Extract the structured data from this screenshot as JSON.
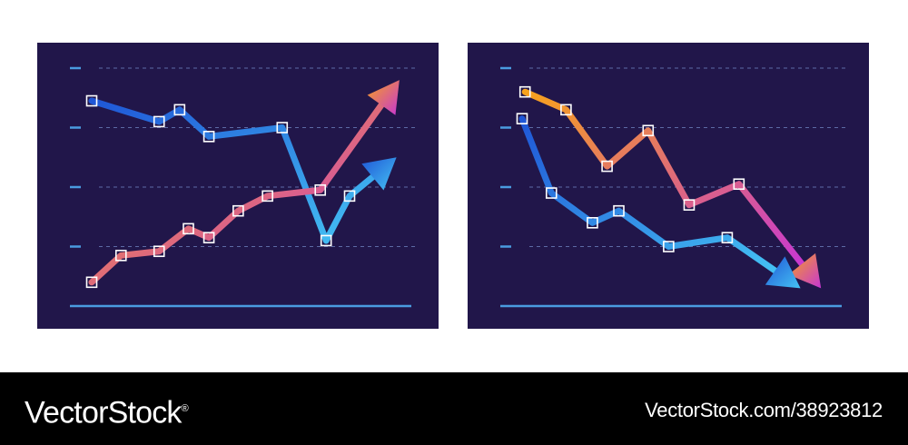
{
  "colors": {
    "background": "#21164a",
    "gridline": "#5d6aa5",
    "axis": "#4a9be0",
    "blue_series": [
      "#1f56d6",
      "#45c3f4"
    ],
    "orange_series": [
      "#f7a21c",
      "#c736d4"
    ],
    "marker": "#ffffff"
  },
  "chart_data": [
    {
      "type": "line",
      "xlim": [
        0,
        11
      ],
      "ylim": [
        0,
        4
      ],
      "grid": true,
      "y_gridlines": [
        1,
        2,
        3,
        4
      ],
      "series": [
        {
          "color": "blue",
          "points": [
            [
              0,
              3.45
            ],
            [
              2.3,
              3.1
            ],
            [
              3.0,
              3.3
            ],
            [
              4.0,
              2.85
            ],
            [
              6.5,
              3.0
            ],
            [
              8.0,
              1.1
            ],
            [
              8.8,
              1.85
            ]
          ],
          "arrow_end": [
            10.4,
            2.5
          ]
        },
        {
          "color": "orange",
          "points": [
            [
              0,
              0.4
            ],
            [
              1.0,
              0.85
            ],
            [
              2.3,
              0.92
            ],
            [
              3.3,
              1.3
            ],
            [
              4.0,
              1.15
            ],
            [
              5.0,
              1.6
            ],
            [
              6.0,
              1.85
            ],
            [
              7.8,
              1.95
            ]
          ],
          "arrow_end": [
            10.5,
            3.8
          ]
        }
      ]
    },
    {
      "type": "line",
      "xlim": [
        0,
        11
      ],
      "ylim": [
        0,
        4
      ],
      "grid": true,
      "y_gridlines": [
        1,
        2,
        3,
        4
      ],
      "series": [
        {
          "color": "orange",
          "points": [
            [
              0.1,
              3.6
            ],
            [
              1.5,
              3.3
            ],
            [
              2.9,
              2.35
            ],
            [
              4.3,
              2.95
            ],
            [
              5.7,
              1.7
            ],
            [
              7.4,
              2.05
            ]
          ],
          "arrow_end": [
            10.2,
            0.3
          ]
        },
        {
          "color": "blue",
          "points": [
            [
              0,
              3.15
            ],
            [
              1.0,
              1.9
            ],
            [
              2.4,
              1.4
            ],
            [
              3.3,
              1.6
            ],
            [
              5.0,
              1.0
            ],
            [
              7.0,
              1.15
            ]
          ],
          "arrow_end": [
            9.5,
            0.3
          ]
        }
      ]
    }
  ],
  "footer": {
    "brand": "VectorStock",
    "brand_mark": "®",
    "credit": "VectorStock.com/38923812"
  }
}
